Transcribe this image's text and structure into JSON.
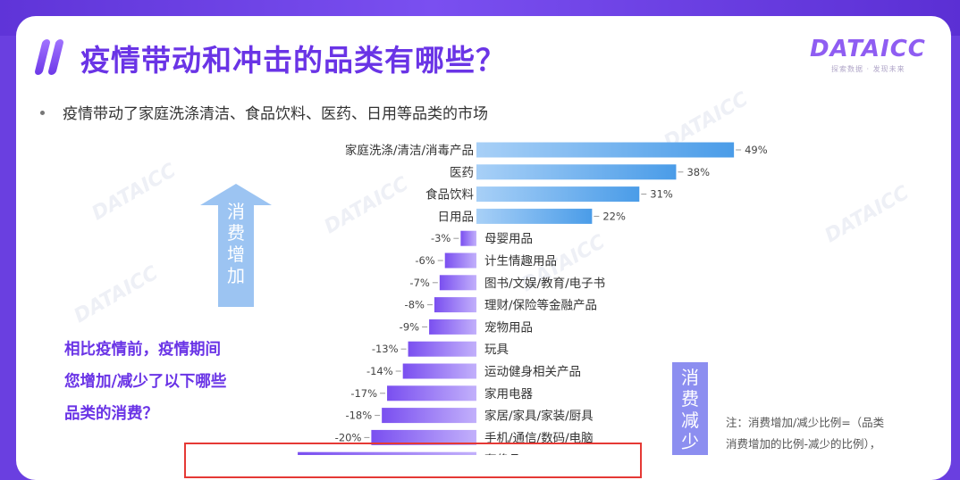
{
  "header": {
    "title": "疫情带动和冲击的品类有哪些？",
    "logo_text": "DATAICC",
    "logo_subtitle": "探索数据 · 发现未来"
  },
  "bullet_text": "疫情带动了家庭洗涤清洁、食品饮料、医药、日用等品类的市场",
  "side_question": [
    "相比疫情前，疫情期间",
    "您增加/减少了以下哪些",
    "品类的消费？"
  ],
  "arrow_up_label": [
    "消",
    "费",
    "增",
    "加"
  ],
  "arrow_down_label": [
    "消",
    "费",
    "减",
    "少"
  ],
  "note": [
    "注：消费增加/减少比例=（品类",
    "消费增加的比例-减少的比例），"
  ],
  "watermark": "DATAICC",
  "colors": {
    "positive_bar": "#4a9ce8",
    "negative_bar": "#7a4ff0",
    "title": "#6a34e6",
    "highlight_box": "#e53935"
  },
  "chart_data": {
    "type": "bar",
    "orientation": "horizontal",
    "unit": "%",
    "categories": [
      "家庭洗涤/清洁/消毒产品",
      "医药",
      "食品饮料",
      "日用品",
      "母婴用品",
      "计生情趣用品",
      "图书/文娱/教育/电子书",
      "理财/保险等金融产品",
      "宠物用品",
      "玩具",
      "运动健身相关产品",
      "家用电器",
      "家居/家具/家装/厨具",
      "手机/通信/数码/电脑",
      "奢侈品"
    ],
    "values": [
      49,
      38,
      31,
      22,
      -3,
      -6,
      -7,
      -8,
      -9,
      -13,
      -14,
      -17,
      -18,
      -20,
      -34
    ],
    "value_labels": [
      "49%",
      "38%",
      "31%",
      "22%",
      "-3%",
      "-6%",
      "-7%",
      "-8%",
      "-9%",
      "-13%",
      "-14%",
      "-17%",
      "-18%",
      "-20%",
      ""
    ],
    "title": "",
    "xlabel": "",
    "ylabel": ""
  }
}
